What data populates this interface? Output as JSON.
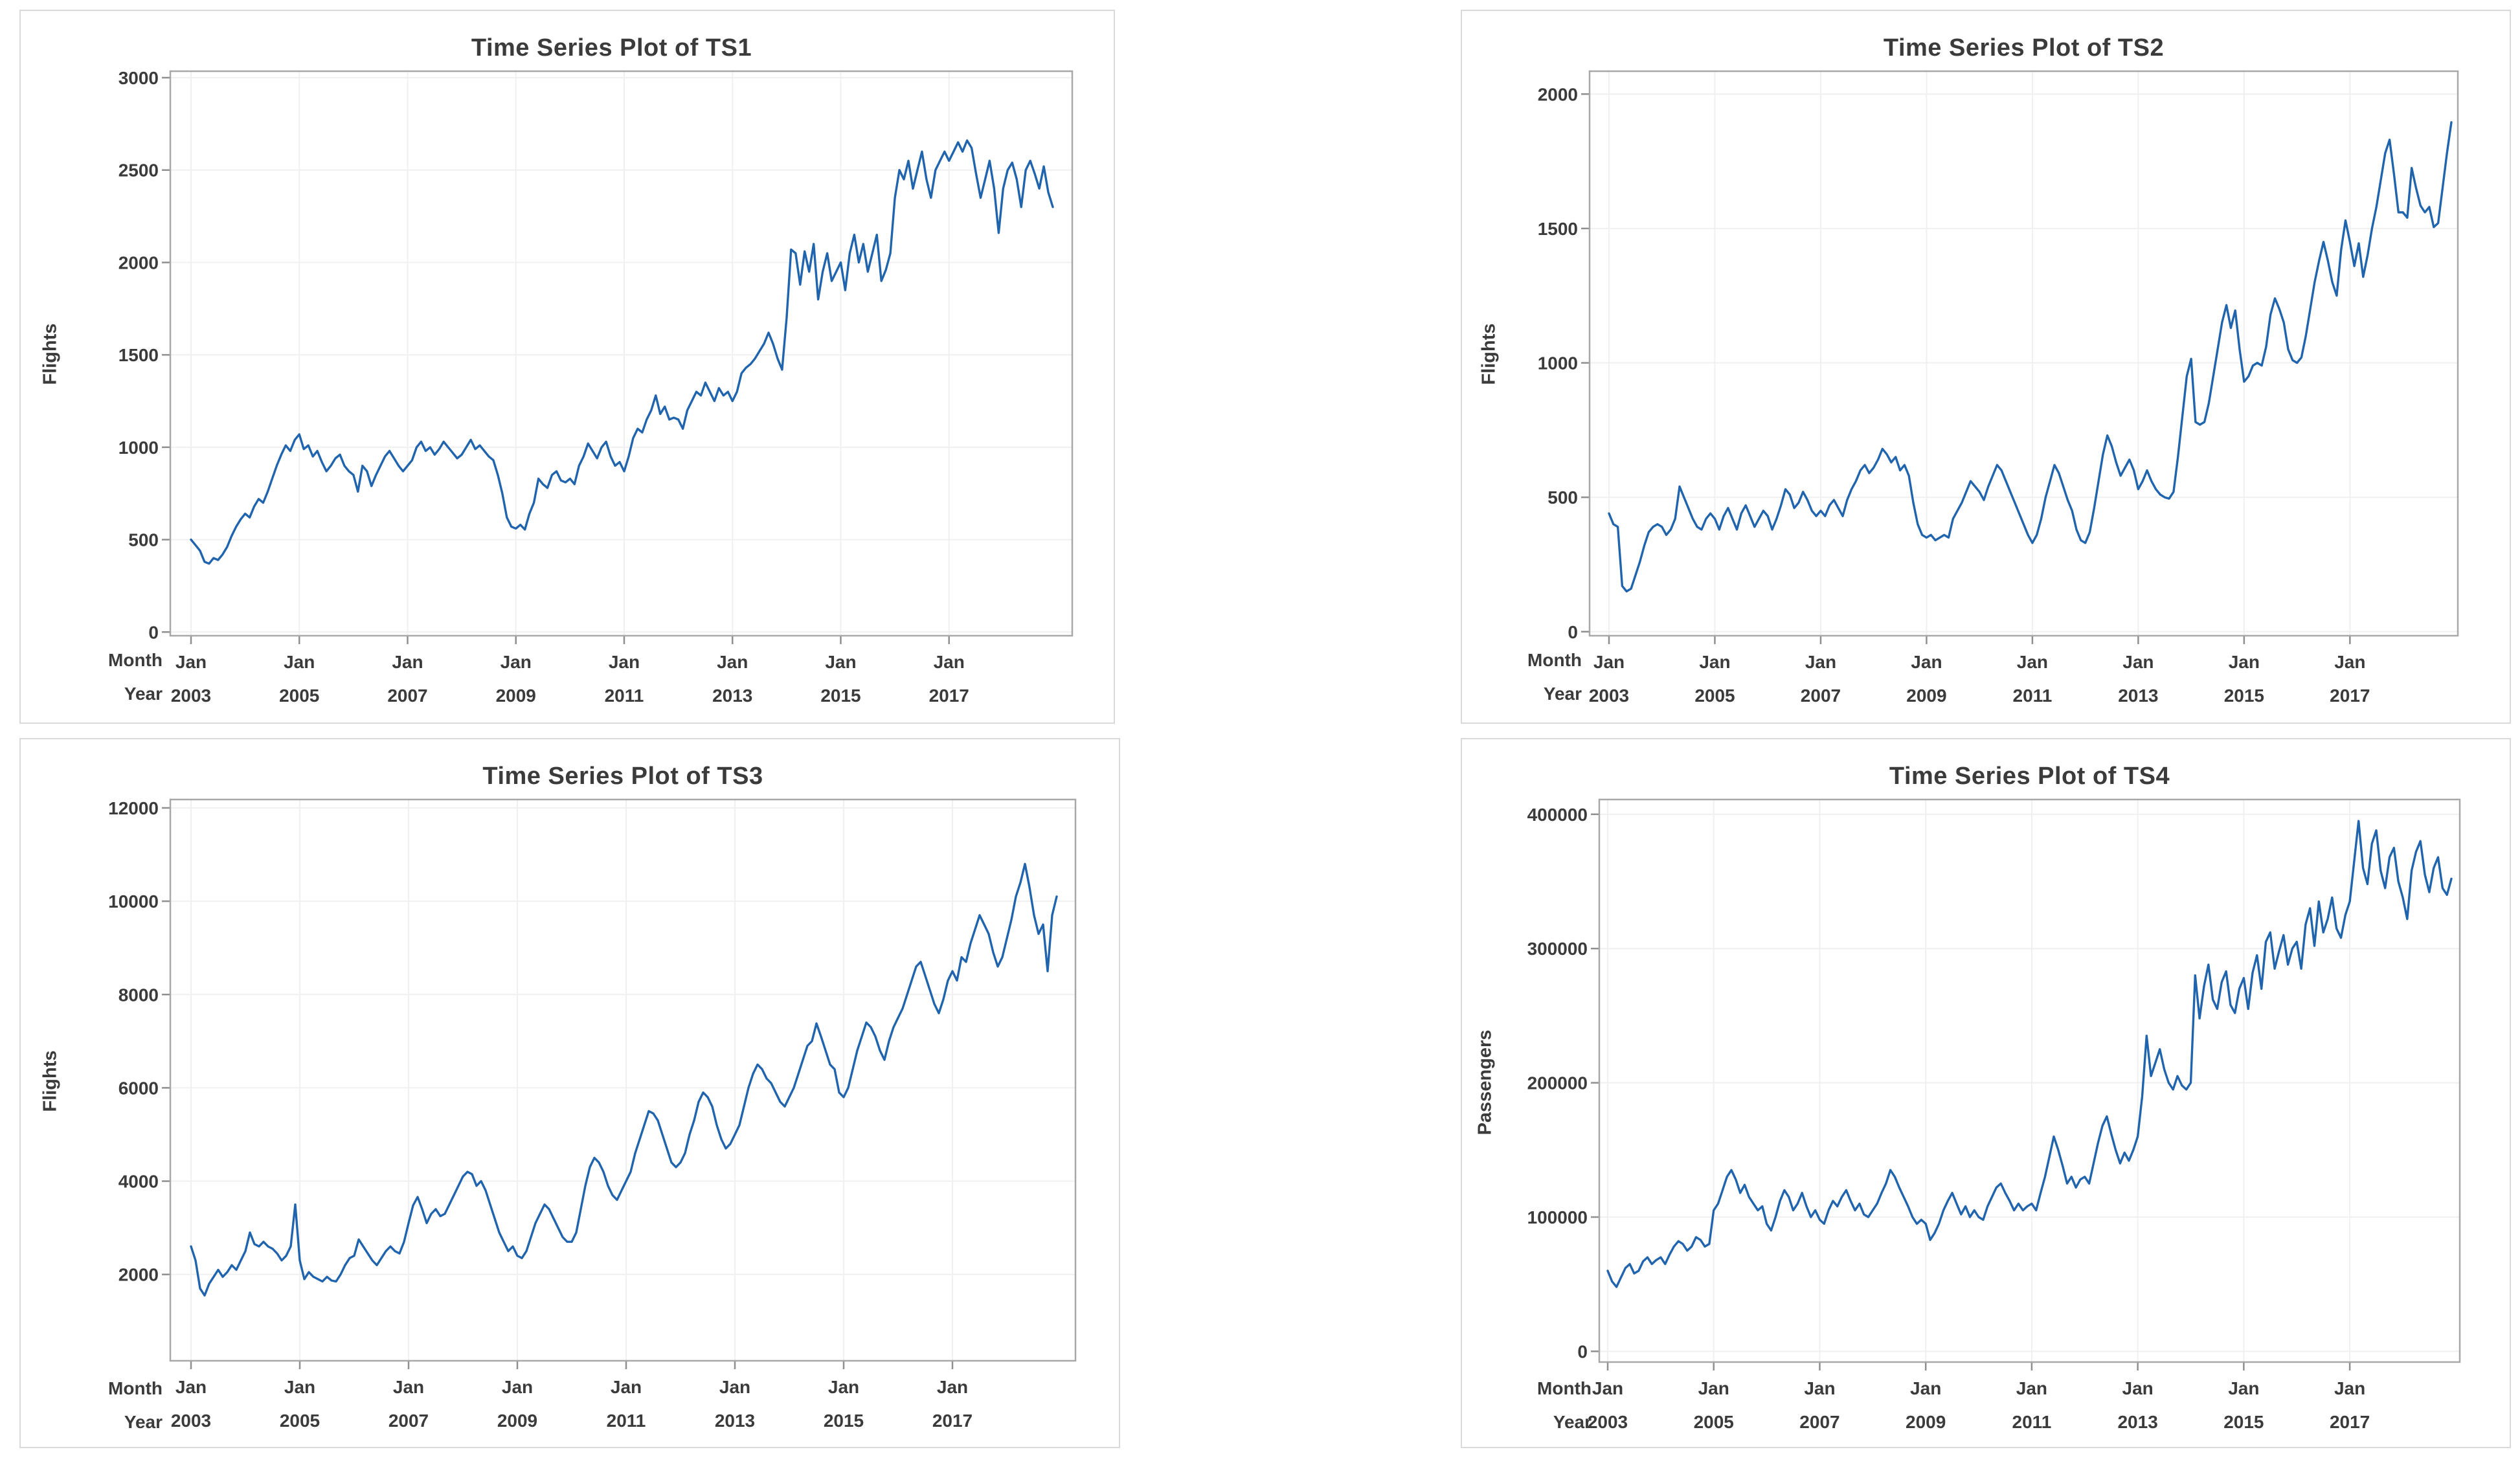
{
  "colors": {
    "line": "#2064ae",
    "grid": "#f0f0f0",
    "frame": "#a8a8a8",
    "tick_mark": "#8f8f8f",
    "text": "#3b3b3b",
    "panel_border": "#d9d9d9",
    "background": "#ffffff"
  },
  "chart_data": [
    {
      "type": "line",
      "title": "Time Series Plot of TS1",
      "ylabel": "Flights",
      "series_name": "TS1",
      "x_start": "Jan 2003",
      "x_end": "Dec 2018",
      "x_frequency": "monthly",
      "n_points": 192,
      "grid": "on",
      "legend": "none",
      "xaxis": {
        "row1_label": "Month",
        "row2_label": "Year",
        "tick_every_months": 24,
        "ticks": [
          {
            "month": "Jan",
            "year": "2003"
          },
          {
            "month": "Jan",
            "year": "2005"
          },
          {
            "month": "Jan",
            "year": "2007"
          },
          {
            "month": "Jan",
            "year": "2009"
          },
          {
            "month": "Jan",
            "year": "2011"
          },
          {
            "month": "Jan",
            "year": "2013"
          },
          {
            "month": "Jan",
            "year": "2015"
          },
          {
            "month": "Jan",
            "year": "2017"
          }
        ]
      },
      "yaxis": {
        "ticks": [
          0,
          500,
          1000,
          1500,
          2000,
          2500,
          3000
        ],
        "range": [
          -20,
          3035
        ]
      },
      "values": [
        500,
        470,
        440,
        380,
        370,
        400,
        390,
        420,
        460,
        520,
        570,
        610,
        640,
        620,
        680,
        720,
        700,
        760,
        830,
        900,
        960,
        1010,
        980,
        1040,
        1070,
        990,
        1010,
        950,
        980,
        920,
        870,
        900,
        940,
        960,
        900,
        870,
        850,
        760,
        900,
        870,
        790,
        850,
        900,
        950,
        980,
        940,
        900,
        870,
        900,
        930,
        1000,
        1030,
        980,
        1000,
        960,
        990,
        1030,
        1000,
        970,
        940,
        960,
        1000,
        1040,
        990,
        1010,
        980,
        950,
        930,
        850,
        750,
        620,
        570,
        560,
        580,
        555,
        640,
        700,
        830,
        800,
        780,
        850,
        870,
        820,
        810,
        830,
        800,
        900,
        950,
        1020,
        980,
        940,
        1000,
        1030,
        950,
        900,
        920,
        870,
        950,
        1050,
        1100,
        1080,
        1150,
        1200,
        1280,
        1180,
        1220,
        1150,
        1160,
        1150,
        1100,
        1200,
        1250,
        1300,
        1280,
        1350,
        1300,
        1250,
        1320,
        1280,
        1300,
        1250,
        1300,
        1400,
        1430,
        1450,
        1480,
        1520,
        1560,
        1620,
        1560,
        1480,
        1420,
        1700,
        2070,
        2050,
        1880,
        2060,
        1950,
        2100,
        1800,
        1950,
        2050,
        1900,
        1950,
        2000,
        1850,
        2050,
        2150,
        2000,
        2100,
        1950,
        2050,
        2150,
        1900,
        1960,
        2050,
        2350,
        2500,
        2450,
        2550,
        2400,
        2500,
        2600,
        2450,
        2350,
        2500,
        2550,
        2600,
        2550,
        2600,
        2650,
        2600,
        2660,
        2620,
        2480,
        2350,
        2450,
        2550,
        2400,
        2160,
        2400,
        2500,
        2540,
        2450,
        2300,
        2500,
        2550,
        2480,
        2400,
        2520,
        2380,
        2300
      ]
    },
    {
      "type": "line",
      "title": "Time Series Plot of TS2",
      "ylabel": "Flights",
      "series_name": "TS2",
      "x_start": "Jan 2003",
      "x_end": "Dec 2018",
      "x_frequency": "monthly",
      "n_points": 192,
      "grid": "on",
      "legend": "none",
      "xaxis": {
        "row1_label": "Month",
        "row2_label": "Year",
        "tick_every_months": 24,
        "ticks": [
          {
            "month": "Jan",
            "year": "2003"
          },
          {
            "month": "Jan",
            "year": "2005"
          },
          {
            "month": "Jan",
            "year": "2007"
          },
          {
            "month": "Jan",
            "year": "2009"
          },
          {
            "month": "Jan",
            "year": "2011"
          },
          {
            "month": "Jan",
            "year": "2013"
          },
          {
            "month": "Jan",
            "year": "2015"
          },
          {
            "month": "Jan",
            "year": "2017"
          }
        ]
      },
      "yaxis": {
        "ticks": [
          0,
          500,
          1000,
          1500,
          2000
        ],
        "range": [
          -15,
          2085
        ]
      },
      "values": [
        440,
        400,
        390,
        170,
        150,
        160,
        210,
        260,
        320,
        370,
        390,
        400,
        390,
        360,
        380,
        420,
        540,
        500,
        460,
        420,
        390,
        380,
        420,
        440,
        420,
        380,
        430,
        460,
        420,
        380,
        440,
        470,
        430,
        390,
        420,
        450,
        430,
        380,
        420,
        470,
        530,
        510,
        460,
        480,
        520,
        490,
        450,
        430,
        450,
        430,
        470,
        490,
        460,
        430,
        490,
        530,
        560,
        600,
        620,
        590,
        610,
        640,
        680,
        660,
        630,
        650,
        600,
        620,
        580,
        480,
        400,
        360,
        350,
        360,
        340,
        350,
        360,
        350,
        420,
        450,
        480,
        520,
        560,
        540,
        520,
        490,
        540,
        580,
        620,
        600,
        560,
        520,
        480,
        440,
        400,
        360,
        330,
        360,
        420,
        500,
        560,
        620,
        590,
        540,
        490,
        450,
        380,
        340,
        330,
        370,
        460,
        560,
        660,
        730,
        690,
        630,
        580,
        610,
        640,
        600,
        530,
        560,
        600,
        560,
        530,
        510,
        500,
        495,
        520,
        650,
        800,
        950,
        1015,
        780,
        770,
        780,
        850,
        950,
        1050,
        1150,
        1215,
        1130,
        1195,
        1050,
        930,
        950,
        990,
        1000,
        990,
        1060,
        1180,
        1240,
        1200,
        1150,
        1050,
        1010,
        1000,
        1020,
        1100,
        1200,
        1300,
        1380,
        1450,
        1380,
        1300,
        1250,
        1420,
        1530,
        1450,
        1360,
        1445,
        1320,
        1400,
        1500,
        1580,
        1680,
        1780,
        1830,
        1700,
        1560,
        1560,
        1540,
        1725,
        1650,
        1585,
        1560,
        1580,
        1505,
        1520,
        1650,
        1780,
        1895
      ]
    },
    {
      "type": "line",
      "title": "Time Series Plot of TS3",
      "ylabel": "Flights",
      "series_name": "TS3",
      "x_start": "Jan 2003",
      "x_end": "Dec 2018",
      "x_frequency": "monthly",
      "n_points": 192,
      "grid": "on",
      "legend": "none",
      "xaxis": {
        "row1_label": "Month",
        "row2_label": "Year",
        "tick_every_months": 24,
        "ticks": [
          {
            "month": "Jan",
            "year": "2003"
          },
          {
            "month": "Jan",
            "year": "2005"
          },
          {
            "month": "Jan",
            "year": "2007"
          },
          {
            "month": "Jan",
            "year": "2009"
          },
          {
            "month": "Jan",
            "year": "2011"
          },
          {
            "month": "Jan",
            "year": "2013"
          },
          {
            "month": "Jan",
            "year": "2015"
          },
          {
            "month": "Jan",
            "year": "2017"
          }
        ]
      },
      "yaxis": {
        "ticks": [
          2000,
          4000,
          6000,
          8000,
          10000,
          12000
        ],
        "range": [
          150,
          12180
        ]
      },
      "values": [
        2600,
        2300,
        1700,
        1550,
        1800,
        1950,
        2100,
        1950,
        2050,
        2200,
        2100,
        2300,
        2500,
        2900,
        2650,
        2600,
        2700,
        2600,
        2550,
        2450,
        2300,
        2400,
        2600,
        3500,
        2300,
        1900,
        2050,
        1950,
        1900,
        1850,
        1950,
        1870,
        1850,
        2000,
        2200,
        2350,
        2400,
        2750,
        2600,
        2450,
        2300,
        2200,
        2350,
        2500,
        2600,
        2500,
        2450,
        2700,
        3100,
        3480,
        3660,
        3400,
        3100,
        3300,
        3400,
        3250,
        3300,
        3500,
        3700,
        3900,
        4100,
        4200,
        4150,
        3900,
        4000,
        3800,
        3500,
        3200,
        2900,
        2700,
        2500,
        2600,
        2400,
        2350,
        2500,
        2800,
        3100,
        3300,
        3500,
        3400,
        3200,
        3000,
        2800,
        2700,
        2700,
        2900,
        3400,
        3900,
        4300,
        4500,
        4400,
        4200,
        3900,
        3700,
        3600,
        3800,
        4000,
        4200,
        4600,
        4900,
        5200,
        5500,
        5450,
        5300,
        5000,
        4700,
        4400,
        4300,
        4400,
        4600,
        5000,
        5300,
        5700,
        5900,
        5800,
        5600,
        5200,
        4900,
        4700,
        4800,
        5000,
        5200,
        5600,
        6000,
        6300,
        6500,
        6400,
        6200,
        6100,
        5900,
        5700,
        5600,
        5800,
        6000,
        6300,
        6600,
        6900,
        7000,
        7380,
        7100,
        6800,
        6500,
        6400,
        5900,
        5800,
        6000,
        6400,
        6800,
        7100,
        7400,
        7300,
        7100,
        6800,
        6600,
        7000,
        7300,
        7500,
        7700,
        8000,
        8300,
        8600,
        8700,
        8400,
        8100,
        7800,
        7600,
        7900,
        8300,
        8500,
        8300,
        8800,
        8700,
        9100,
        9400,
        9700,
        9500,
        9300,
        8900,
        8600,
        8800,
        9200,
        9600,
        10100,
        10400,
        10800,
        10300,
        9700,
        9300,
        9500,
        8500,
        9700,
        10100
      ]
    },
    {
      "type": "line",
      "title": "Time Series Plot of TS4",
      "ylabel": "Passengers",
      "series_name": "TS4",
      "x_start": "Jan 2003",
      "x_end": "Dec 2018",
      "x_frequency": "monthly",
      "n_points": 192,
      "grid": "on",
      "legend": "none",
      "xaxis": {
        "row1_label": "Month",
        "row2_label": "Year",
        "tick_every_months": 24,
        "ticks": [
          {
            "month": "Jan",
            "year": "2003"
          },
          {
            "month": "Jan",
            "year": "2005"
          },
          {
            "month": "Jan",
            "year": "2007"
          },
          {
            "month": "Jan",
            "year": "2009"
          },
          {
            "month": "Jan",
            "year": "2011"
          },
          {
            "month": "Jan",
            "year": "2013"
          },
          {
            "month": "Jan",
            "year": "2015"
          },
          {
            "month": "Jan",
            "year": "2017"
          }
        ]
      },
      "yaxis": {
        "ticks": [
          0,
          100000,
          200000,
          300000,
          400000
        ],
        "range": [
          -8000,
          411000
        ]
      },
      "values": [
        60000,
        52000,
        48000,
        55000,
        62000,
        65000,
        58000,
        60000,
        67000,
        70000,
        65000,
        68000,
        70000,
        65000,
        72000,
        78000,
        82000,
        80000,
        75000,
        78000,
        85000,
        83000,
        78000,
        80000,
        105000,
        110000,
        120000,
        130000,
        135000,
        128000,
        118000,
        124000,
        115000,
        110000,
        105000,
        108000,
        95000,
        90000,
        100000,
        112000,
        120000,
        115000,
        105000,
        110000,
        118000,
        108000,
        100000,
        105000,
        98000,
        95000,
        105000,
        112000,
        108000,
        115000,
        120000,
        112000,
        105000,
        110000,
        102000,
        100000,
        105000,
        110000,
        118000,
        125000,
        135000,
        130000,
        122000,
        115000,
        108000,
        100000,
        95000,
        98000,
        95000,
        83000,
        88000,
        95000,
        105000,
        112000,
        118000,
        110000,
        102000,
        108000,
        100000,
        105000,
        100000,
        98000,
        108000,
        115000,
        122000,
        125000,
        118000,
        112000,
        105000,
        110000,
        105000,
        108000,
        110000,
        105000,
        118000,
        130000,
        145000,
        160000,
        150000,
        138000,
        125000,
        130000,
        122000,
        128000,
        130000,
        125000,
        140000,
        155000,
        168000,
        175000,
        162000,
        150000,
        140000,
        148000,
        142000,
        150000,
        160000,
        190000,
        235000,
        205000,
        215000,
        225000,
        210000,
        200000,
        195000,
        205000,
        198000,
        195000,
        200000,
        280000,
        248000,
        272000,
        288000,
        262000,
        255000,
        275000,
        283000,
        258000,
        252000,
        270000,
        278000,
        255000,
        282000,
        295000,
        270000,
        305000,
        312000,
        285000,
        298000,
        310000,
        288000,
        300000,
        305000,
        285000,
        318000,
        330000,
        302000,
        335000,
        312000,
        322000,
        338000,
        315000,
        308000,
        325000,
        335000,
        365000,
        395000,
        360000,
        348000,
        378000,
        388000,
        358000,
        345000,
        368000,
        375000,
        350000,
        338000,
        322000,
        358000,
        372000,
        380000,
        355000,
        342000,
        360000,
        368000,
        345000,
        340000,
        352000
      ]
    }
  ]
}
